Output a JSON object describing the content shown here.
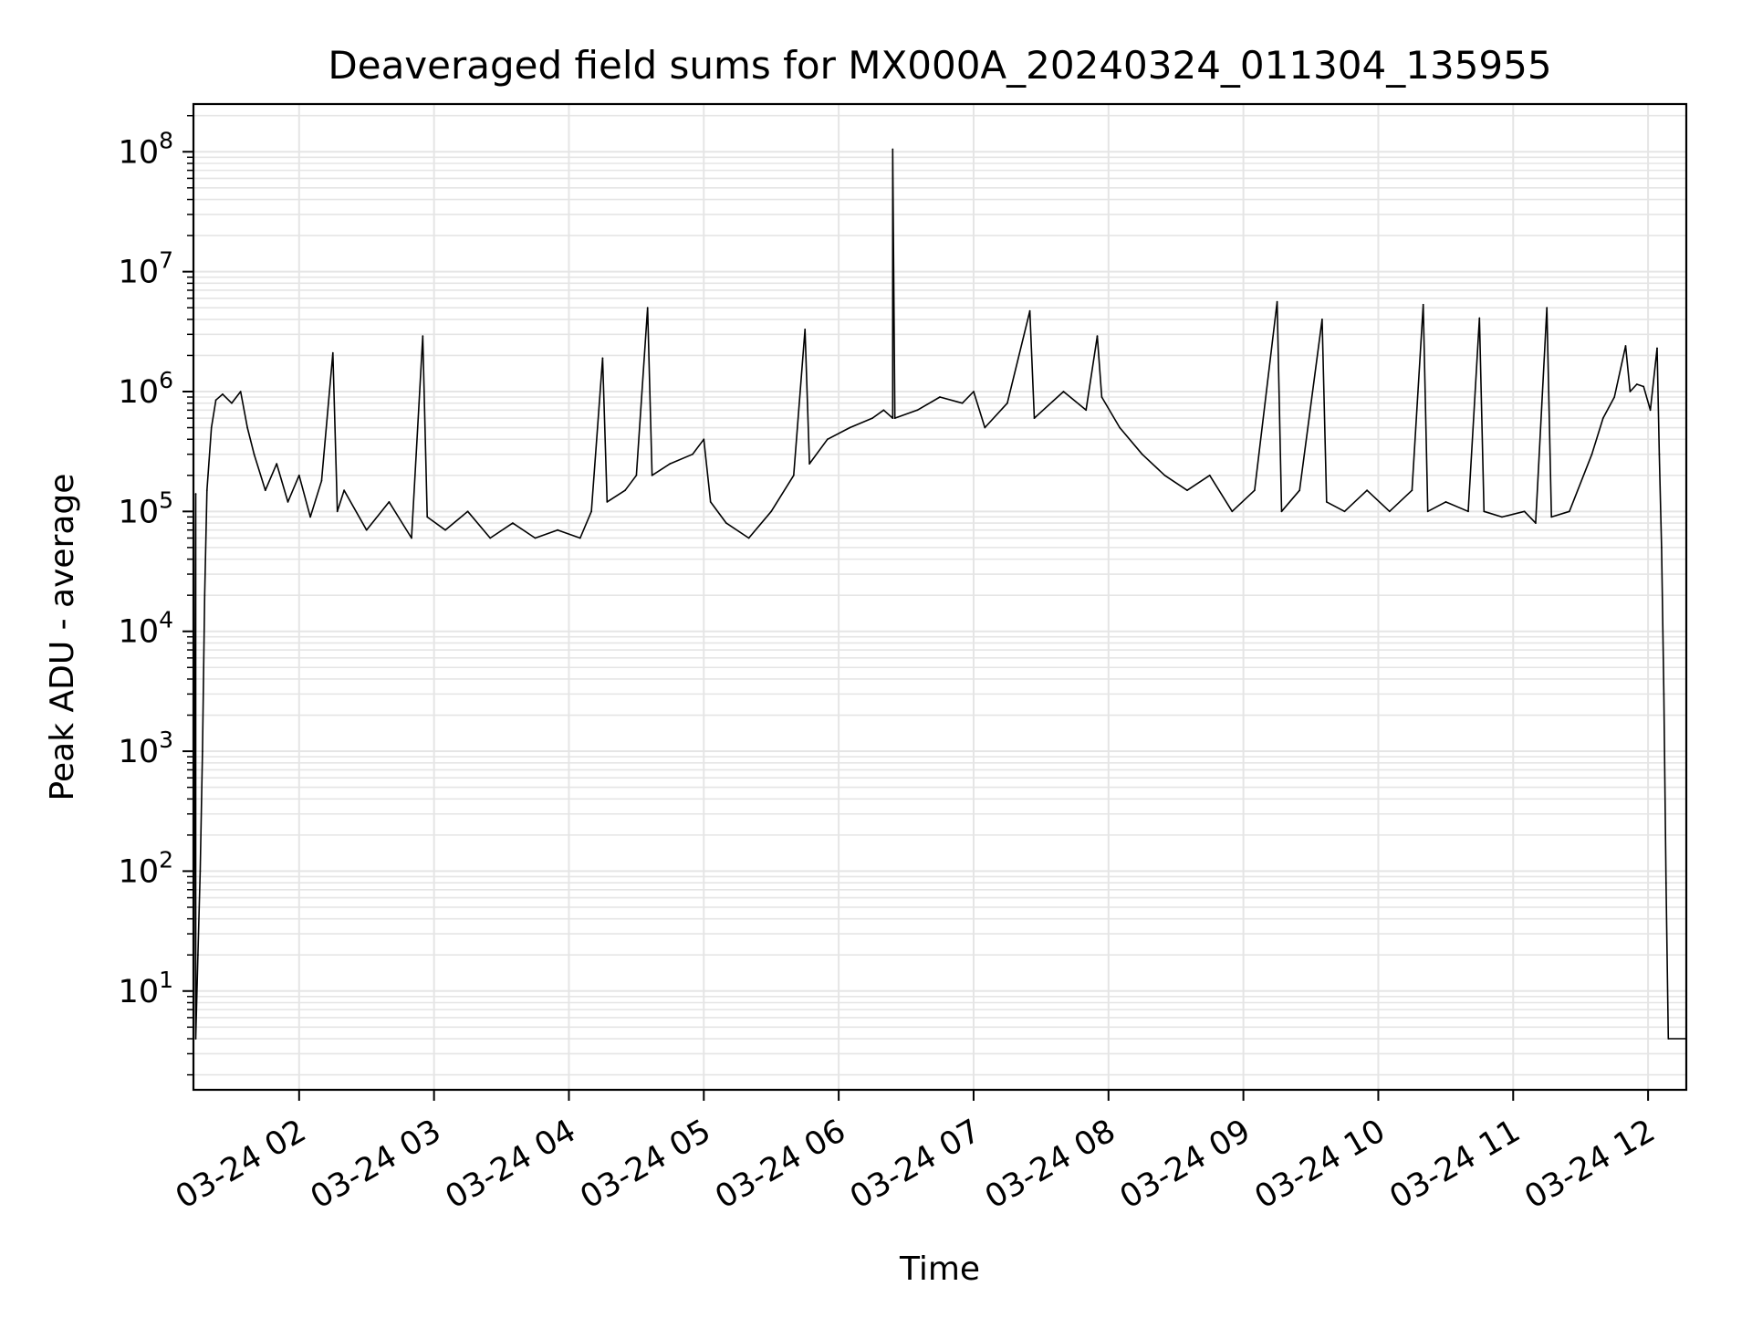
{
  "chart_data": {
    "type": "line",
    "title": "Deaveraged field sums for MX000A_20240324_011304_135955",
    "xlabel": "Time",
    "ylabel": "Peak ADU - average",
    "yscale": "log",
    "grid": true,
    "line_color": "#000000",
    "grid_color": "#e5e5e5",
    "xlim": [
      "2024-03-24 01:13",
      "2024-03-24 12:17"
    ],
    "ylim": [
      1.5,
      250000000
    ],
    "x_ticks": [
      {
        "t": "2024-03-24 02:00",
        "label": "03-24 02"
      },
      {
        "t": "2024-03-24 03:00",
        "label": "03-24 03"
      },
      {
        "t": "2024-03-24 04:00",
        "label": "03-24 04"
      },
      {
        "t": "2024-03-24 05:00",
        "label": "03-24 05"
      },
      {
        "t": "2024-03-24 06:00",
        "label": "03-24 06"
      },
      {
        "t": "2024-03-24 07:00",
        "label": "03-24 07"
      },
      {
        "t": "2024-03-24 08:00",
        "label": "03-24 08"
      },
      {
        "t": "2024-03-24 09:00",
        "label": "03-24 09"
      },
      {
        "t": "2024-03-24 10:00",
        "label": "03-24 10"
      },
      {
        "t": "2024-03-24 11:00",
        "label": "03-24 11"
      },
      {
        "t": "2024-03-24 12:00",
        "label": "03-24 12"
      }
    ],
    "y_ticks": [
      {
        "value": 10,
        "base": "10",
        "exp": "1"
      },
      {
        "value": 100,
        "base": "10",
        "exp": "2"
      },
      {
        "value": 1000,
        "base": "10",
        "exp": "3"
      },
      {
        "value": 10000,
        "base": "10",
        "exp": "4"
      },
      {
        "value": 100000,
        "base": "10",
        "exp": "5"
      },
      {
        "value": 1000000,
        "base": "10",
        "exp": "6"
      },
      {
        "value": 10000000,
        "base": "10",
        "exp": "7"
      },
      {
        "value": 100000000,
        "base": "10",
        "exp": "8"
      }
    ],
    "series": [
      {
        "points": [
          [
            "2024-03-24 01:13",
            2
          ],
          [
            "2024-03-24 01:14",
            140000
          ],
          [
            "2024-03-24 01:14",
            4
          ],
          [
            "2024-03-24 01:15",
            20
          ],
          [
            "2024-03-24 01:16",
            100
          ],
          [
            "2024-03-24 01:17",
            1000
          ],
          [
            "2024-03-24 01:18",
            20000
          ],
          [
            "2024-03-24 01:19",
            150000
          ],
          [
            "2024-03-24 01:21",
            500000
          ],
          [
            "2024-03-24 01:23",
            850000
          ],
          [
            "2024-03-24 01:26",
            950000
          ],
          [
            "2024-03-24 01:30",
            800000
          ],
          [
            "2024-03-24 01:34",
            1000000
          ],
          [
            "2024-03-24 01:37",
            500000
          ],
          [
            "2024-03-24 01:40",
            300000
          ],
          [
            "2024-03-24 01:45",
            150000
          ],
          [
            "2024-03-24 01:50",
            250000
          ],
          [
            "2024-03-24 01:55",
            120000
          ],
          [
            "2024-03-24 02:00",
            200000
          ],
          [
            "2024-03-24 02:05",
            90000
          ],
          [
            "2024-03-24 02:10",
            180000
          ],
          [
            "2024-03-24 02:15",
            2100000
          ],
          [
            "2024-03-24 02:17",
            100000
          ],
          [
            "2024-03-24 02:20",
            150000
          ],
          [
            "2024-03-24 02:30",
            70000
          ],
          [
            "2024-03-24 02:40",
            120000
          ],
          [
            "2024-03-24 02:50",
            60000
          ],
          [
            "2024-03-24 02:55",
            2900000
          ],
          [
            "2024-03-24 02:57",
            90000
          ],
          [
            "2024-03-24 03:05",
            70000
          ],
          [
            "2024-03-24 03:15",
            100000
          ],
          [
            "2024-03-24 03:25",
            60000
          ],
          [
            "2024-03-24 03:35",
            80000
          ],
          [
            "2024-03-24 03:45",
            60000
          ],
          [
            "2024-03-24 03:55",
            70000
          ],
          [
            "2024-03-24 04:05",
            60000
          ],
          [
            "2024-03-24 04:10",
            100000
          ],
          [
            "2024-03-24 04:15",
            1900000
          ],
          [
            "2024-03-24 04:17",
            120000
          ],
          [
            "2024-03-24 04:25",
            150000
          ],
          [
            "2024-03-24 04:30",
            200000
          ],
          [
            "2024-03-24 04:35",
            5000000
          ],
          [
            "2024-03-24 04:37",
            200000
          ],
          [
            "2024-03-24 04:45",
            250000
          ],
          [
            "2024-03-24 04:55",
            300000
          ],
          [
            "2024-03-24 05:00",
            400000
          ],
          [
            "2024-03-24 05:03",
            120000
          ],
          [
            "2024-03-24 05:10",
            80000
          ],
          [
            "2024-03-24 05:20",
            60000
          ],
          [
            "2024-03-24 05:30",
            100000
          ],
          [
            "2024-03-24 05:40",
            200000
          ],
          [
            "2024-03-24 05:45",
            3300000
          ],
          [
            "2024-03-24 05:47",
            250000
          ],
          [
            "2024-03-24 05:55",
            400000
          ],
          [
            "2024-03-24 06:05",
            500000
          ],
          [
            "2024-03-24 06:15",
            600000
          ],
          [
            "2024-03-24 06:20",
            700000
          ],
          [
            "2024-03-24 06:24",
            600000
          ],
          [
            "2024-03-24 06:24",
            105000000
          ],
          [
            "2024-03-24 06:25",
            600000
          ],
          [
            "2024-03-24 06:35",
            700000
          ],
          [
            "2024-03-24 06:45",
            900000
          ],
          [
            "2024-03-24 06:55",
            800000
          ],
          [
            "2024-03-24 07:00",
            1000000
          ],
          [
            "2024-03-24 07:05",
            500000
          ],
          [
            "2024-03-24 07:15",
            800000
          ],
          [
            "2024-03-24 07:25",
            4700000
          ],
          [
            "2024-03-24 07:27",
            600000
          ],
          [
            "2024-03-24 07:40",
            1000000
          ],
          [
            "2024-03-24 07:50",
            700000
          ],
          [
            "2024-03-24 07:55",
            2900000
          ],
          [
            "2024-03-24 07:57",
            900000
          ],
          [
            "2024-03-24 08:05",
            500000
          ],
          [
            "2024-03-24 08:15",
            300000
          ],
          [
            "2024-03-24 08:25",
            200000
          ],
          [
            "2024-03-24 08:35",
            150000
          ],
          [
            "2024-03-24 08:45",
            200000
          ],
          [
            "2024-03-24 08:55",
            100000
          ],
          [
            "2024-03-24 09:05",
            150000
          ],
          [
            "2024-03-24 09:15",
            5600000
          ],
          [
            "2024-03-24 09:17",
            100000
          ],
          [
            "2024-03-24 09:25",
            150000
          ],
          [
            "2024-03-24 09:35",
            4000000
          ],
          [
            "2024-03-24 09:37",
            120000
          ],
          [
            "2024-03-24 09:45",
            100000
          ],
          [
            "2024-03-24 09:55",
            150000
          ],
          [
            "2024-03-24 10:05",
            100000
          ],
          [
            "2024-03-24 10:15",
            150000
          ],
          [
            "2024-03-24 10:20",
            5300000
          ],
          [
            "2024-03-24 10:22",
            100000
          ],
          [
            "2024-03-24 10:30",
            120000
          ],
          [
            "2024-03-24 10:40",
            100000
          ],
          [
            "2024-03-24 10:45",
            4100000
          ],
          [
            "2024-03-24 10:47",
            100000
          ],
          [
            "2024-03-24 10:55",
            90000
          ],
          [
            "2024-03-24 11:05",
            100000
          ],
          [
            "2024-03-24 11:10",
            80000
          ],
          [
            "2024-03-24 11:15",
            5000000
          ],
          [
            "2024-03-24 11:17",
            90000
          ],
          [
            "2024-03-24 11:25",
            100000
          ],
          [
            "2024-03-24 11:35",
            300000
          ],
          [
            "2024-03-24 11:40",
            600000
          ],
          [
            "2024-03-24 11:45",
            900000
          ],
          [
            "2024-03-24 11:50",
            2400000
          ],
          [
            "2024-03-24 11:52",
            1000000
          ],
          [
            "2024-03-24 11:55",
            1150000
          ],
          [
            "2024-03-24 11:58",
            1100000
          ],
          [
            "2024-03-24 12:01",
            700000
          ],
          [
            "2024-03-24 12:04",
            2300000
          ],
          [
            "2024-03-24 12:05",
            300000
          ],
          [
            "2024-03-24 12:06",
            50000
          ],
          [
            "2024-03-24 12:07",
            3000
          ],
          [
            "2024-03-24 12:08",
            80
          ],
          [
            "2024-03-24 12:09",
            4
          ],
          [
            "2024-03-24 12:17",
            4
          ]
        ]
      }
    ]
  }
}
